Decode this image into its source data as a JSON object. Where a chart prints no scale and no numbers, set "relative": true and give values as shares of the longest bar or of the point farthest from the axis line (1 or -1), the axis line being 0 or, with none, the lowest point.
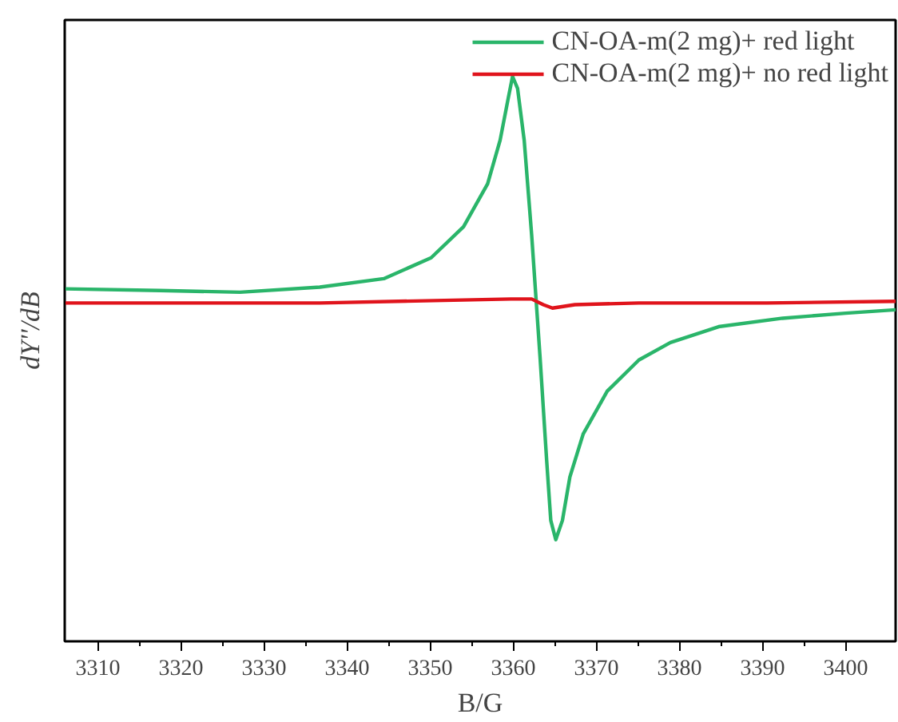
{
  "chart_data": {
    "type": "line",
    "relative": true,
    "xlabel": "B/G",
    "ylabel": "dY''/dB",
    "xlim": [
      3306,
      3406
    ],
    "xticks": [
      3310,
      3320,
      3330,
      3340,
      3350,
      3360,
      3370,
      3380,
      3390,
      3400
    ],
    "tick_labels": "x",
    "grid": false,
    "legend": "top right",
    "line_style": "solid",
    "marker": "none",
    "series": [
      {
        "name": "CN-OA-m(2 mg)+ red light",
        "color": "#2ab56a",
        "x": [
          3306,
          3317.5,
          3327.1,
          3336.7,
          3344.4,
          3350.1,
          3354.0,
          3356.9,
          3358.4,
          3359.4,
          3359.9,
          3360.5,
          3361.3,
          3362.2,
          3363.2,
          3364.0,
          3364.5,
          3365.1,
          3365.9,
          3366.8,
          3368.4,
          3371.3,
          3375.1,
          3378.9,
          3384.7,
          3392.4,
          3400.0,
          3406
        ],
        "values": [
          0.624,
          0.621,
          0.618,
          0.627,
          0.642,
          0.679,
          0.734,
          0.81,
          0.887,
          0.963,
          1,
          0.979,
          0.887,
          0.719,
          0.505,
          0.321,
          0.214,
          0.18,
          0.214,
          0.291,
          0.367,
          0.443,
          0.498,
          0.529,
          0.557,
          0.572,
          0.581,
          0.587
        ]
      },
      {
        "name": "CN-OA-m(2 mg)+ no red light",
        "color": "#e0141c",
        "x": [
          3306,
          3336.7,
          3359.7,
          3362.2,
          3363.6,
          3364.7,
          3367.4,
          3375.1,
          3390.5,
          3406
        ],
        "values": [
          0.599,
          0.599,
          0.606,
          0.606,
          0.596,
          0.59,
          0.596,
          0.599,
          0.599,
          0.602
        ]
      }
    ]
  }
}
